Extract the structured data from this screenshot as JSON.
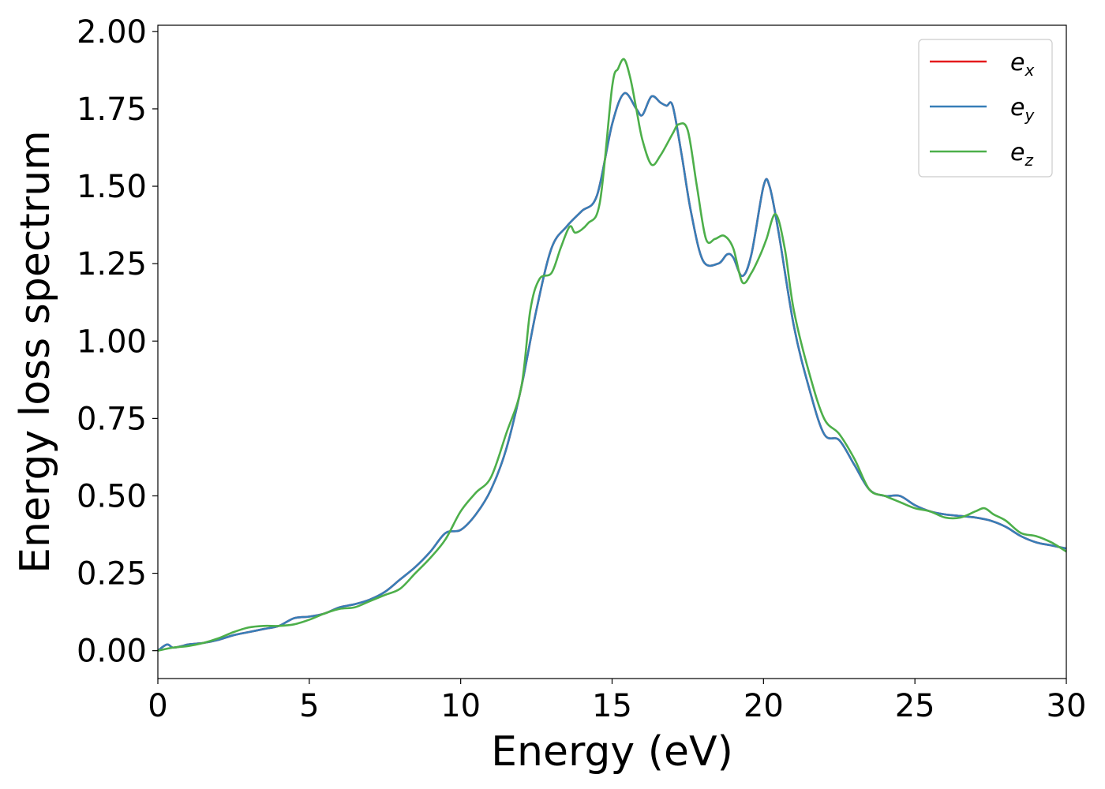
{
  "chart_data": {
    "type": "line",
    "xlabel": "Energy (eV)",
    "ylabel": "Energy loss spectrum",
    "xlim": [
      0,
      30
    ],
    "ylim": [
      -0.09,
      2.02
    ],
    "xticks": [
      0,
      5,
      10,
      15,
      20,
      25,
      30
    ],
    "xtick_labels": [
      "0",
      "5",
      "10",
      "15",
      "20",
      "25",
      "30"
    ],
    "yticks": [
      0,
      0.25,
      0.5,
      0.75,
      1.0,
      1.25,
      1.5,
      1.75,
      2.0
    ],
    "ytick_labels": [
      "0.00",
      "0.25",
      "0.50",
      "0.75",
      "1.00",
      "1.25",
      "1.50",
      "1.75",
      "2.00"
    ],
    "grid": false,
    "legend_position": "top-right",
    "series": [
      {
        "name": "e_x",
        "legend_main": "e",
        "legend_sub": "x",
        "color": "#e41a1c",
        "x": [
          0,
          0.3,
          0.5,
          0.8,
          1,
          1.5,
          2,
          2.5,
          3,
          3.5,
          4,
          4.5,
          5,
          5.5,
          6,
          6.5,
          7,
          7.5,
          8,
          8.5,
          9,
          9.5,
          10,
          10.5,
          11,
          11.5,
          12,
          12.5,
          13,
          13.5,
          14,
          14.5,
          15,
          15.4,
          15.8,
          16,
          16.3,
          16.6,
          16.8,
          17,
          17.3,
          17.6,
          18,
          18.5,
          18.8,
          19,
          19.3,
          19.6,
          20,
          20.2,
          20.5,
          21,
          21.5,
          22,
          22.5,
          23,
          23.5,
          24,
          24.5,
          25,
          25.5,
          26,
          26.5,
          27,
          27.5,
          28,
          28.5,
          29,
          29.5,
          30
        ],
        "y": [
          0,
          0.02,
          0.01,
          0.015,
          0.02,
          0.025,
          0.035,
          0.05,
          0.06,
          0.07,
          0.08,
          0.105,
          0.11,
          0.12,
          0.14,
          0.15,
          0.165,
          0.19,
          0.23,
          0.27,
          0.32,
          0.38,
          0.39,
          0.44,
          0.52,
          0.65,
          0.85,
          1.1,
          1.3,
          1.37,
          1.42,
          1.47,
          1.7,
          1.8,
          1.75,
          1.73,
          1.79,
          1.77,
          1.76,
          1.76,
          1.6,
          1.42,
          1.26,
          1.25,
          1.28,
          1.27,
          1.21,
          1.28,
          1.5,
          1.5,
          1.35,
          1.05,
          0.85,
          0.7,
          0.68,
          0.6,
          0.52,
          0.5,
          0.5,
          0.47,
          0.45,
          0.44,
          0.435,
          0.43,
          0.42,
          0.4,
          0.37,
          0.35,
          0.34,
          0.33
        ]
      },
      {
        "name": "e_y",
        "legend_main": "e",
        "legend_sub": "y",
        "color": "#377eb8",
        "x": [
          0,
          0.3,
          0.5,
          0.8,
          1,
          1.5,
          2,
          2.5,
          3,
          3.5,
          4,
          4.5,
          5,
          5.5,
          6,
          6.5,
          7,
          7.5,
          8,
          8.5,
          9,
          9.5,
          10,
          10.5,
          11,
          11.5,
          12,
          12.5,
          13,
          13.5,
          14,
          14.5,
          15,
          15.4,
          15.8,
          16,
          16.3,
          16.6,
          16.8,
          17,
          17.3,
          17.6,
          18,
          18.5,
          18.8,
          19,
          19.3,
          19.6,
          20,
          20.2,
          20.5,
          21,
          21.5,
          22,
          22.5,
          23,
          23.5,
          24,
          24.5,
          25,
          25.5,
          26,
          26.5,
          27,
          27.5,
          28,
          28.5,
          29,
          29.5,
          30
        ],
        "y": [
          0,
          0.02,
          0.01,
          0.015,
          0.02,
          0.025,
          0.035,
          0.05,
          0.06,
          0.07,
          0.08,
          0.105,
          0.11,
          0.12,
          0.14,
          0.15,
          0.165,
          0.19,
          0.23,
          0.27,
          0.32,
          0.38,
          0.39,
          0.44,
          0.52,
          0.65,
          0.85,
          1.1,
          1.3,
          1.37,
          1.42,
          1.47,
          1.7,
          1.8,
          1.75,
          1.73,
          1.79,
          1.77,
          1.76,
          1.76,
          1.6,
          1.42,
          1.26,
          1.25,
          1.28,
          1.27,
          1.21,
          1.28,
          1.5,
          1.5,
          1.35,
          1.05,
          0.85,
          0.7,
          0.68,
          0.6,
          0.52,
          0.5,
          0.5,
          0.47,
          0.45,
          0.44,
          0.435,
          0.43,
          0.42,
          0.4,
          0.37,
          0.35,
          0.34,
          0.33
        ]
      },
      {
        "name": "e_z",
        "legend_main": "e",
        "legend_sub": "z",
        "color": "#4daf4a",
        "x": [
          0,
          0.5,
          1,
          1.5,
          2,
          2.5,
          3,
          3.5,
          4,
          4.5,
          5,
          5.5,
          6,
          6.5,
          7,
          7.5,
          8,
          8.5,
          9,
          9.5,
          10,
          10.5,
          11,
          11.5,
          12,
          12.3,
          12.6,
          13,
          13.3,
          13.6,
          13.8,
          14.2,
          14.6,
          15,
          15.2,
          15.4,
          15.6,
          15.8,
          16,
          16.3,
          16.6,
          17,
          17.2,
          17.5,
          17.8,
          18.1,
          18.4,
          18.7,
          19,
          19.3,
          19.6,
          19.9,
          20.1,
          20.4,
          20.7,
          21,
          21.5,
          22,
          22.5,
          23,
          23.5,
          24,
          24.5,
          25,
          25.5,
          26,
          26.5,
          27,
          27.3,
          27.6,
          28,
          28.5,
          29,
          29.5,
          30
        ],
        "y": [
          0,
          0.01,
          0.015,
          0.025,
          0.04,
          0.06,
          0.075,
          0.08,
          0.08,
          0.085,
          0.1,
          0.12,
          0.135,
          0.14,
          0.16,
          0.18,
          0.2,
          0.25,
          0.3,
          0.36,
          0.45,
          0.51,
          0.56,
          0.7,
          0.85,
          1.1,
          1.2,
          1.22,
          1.3,
          1.37,
          1.35,
          1.38,
          1.45,
          1.82,
          1.88,
          1.91,
          1.85,
          1.75,
          1.65,
          1.57,
          1.6,
          1.67,
          1.7,
          1.68,
          1.5,
          1.33,
          1.33,
          1.34,
          1.3,
          1.19,
          1.22,
          1.28,
          1.33,
          1.41,
          1.3,
          1.1,
          0.9,
          0.75,
          0.7,
          0.62,
          0.52,
          0.5,
          0.48,
          0.46,
          0.45,
          0.43,
          0.43,
          0.45,
          0.46,
          0.44,
          0.42,
          0.38,
          0.37,
          0.35,
          0.32
        ]
      }
    ]
  }
}
